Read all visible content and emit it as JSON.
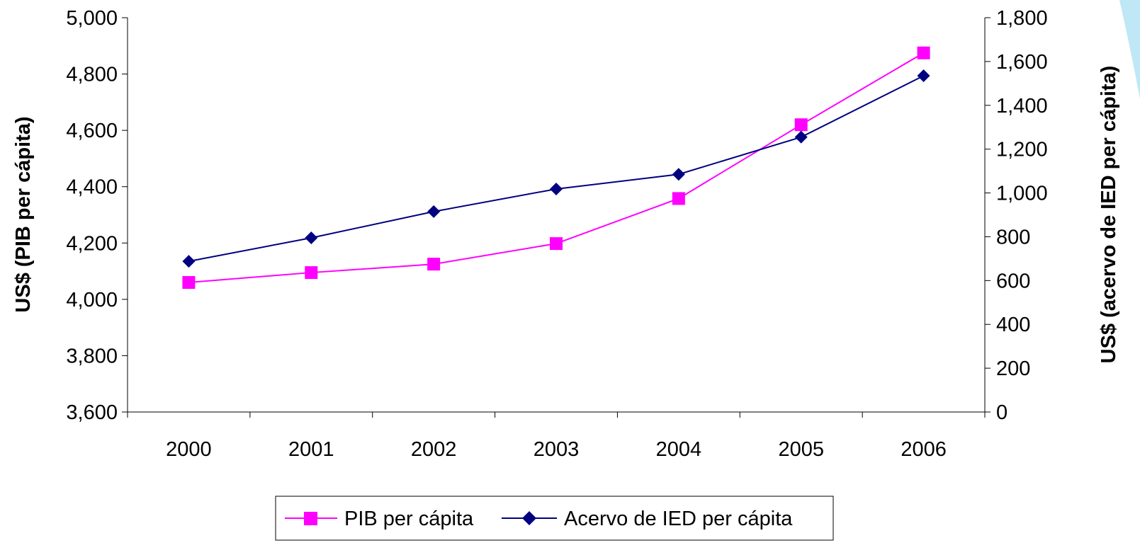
{
  "chart_data": {
    "type": "line",
    "categories": [
      "2000",
      "2001",
      "2002",
      "2003",
      "2004",
      "2005",
      "2006"
    ],
    "left_axis": {
      "label": "US$ (PIB per cápita)",
      "ylim": [
        3600,
        5000
      ],
      "ticks": [
        "3,600",
        "3,800",
        "4,000",
        "4,200",
        "4,400",
        "4,600",
        "4,800",
        "5,000"
      ],
      "tick_values": [
        3600,
        3800,
        4000,
        4200,
        4400,
        4600,
        4800,
        5000
      ]
    },
    "right_axis": {
      "label": "US$ (acervo de IED per cápita)",
      "ylim": [
        0,
        1800
      ],
      "ticks": [
        "0",
        "200",
        "400",
        "600",
        "800",
        "1,000",
        "1,200",
        "1,400",
        "1,600",
        "1,800"
      ],
      "tick_values": [
        0,
        200,
        400,
        600,
        800,
        1000,
        1200,
        1400,
        1600,
        1800
      ]
    },
    "series": [
      {
        "name": "PIB per cápita",
        "axis": "left",
        "color": "#FF00FF",
        "marker": "square",
        "values": [
          4060,
          4095,
          4125,
          4198,
          4358,
          4620,
          4875
        ]
      },
      {
        "name": "Acervo de IED per cápita",
        "axis": "right",
        "color": "#000080",
        "marker": "diamond",
        "values": [
          688,
          795,
          915,
          1018,
          1085,
          1255,
          1535
        ]
      }
    ],
    "legend_position": "bottom",
    "grid": false
  }
}
